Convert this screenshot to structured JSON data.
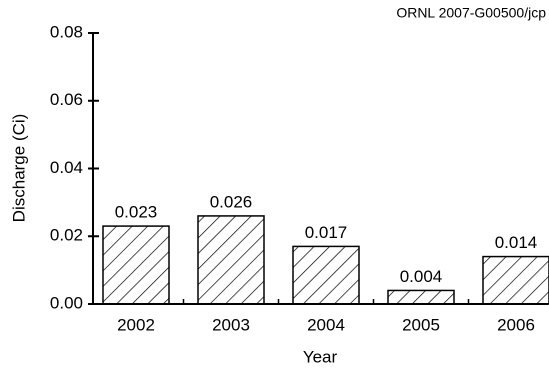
{
  "chart_data": {
    "type": "bar",
    "annotation": "ORNL 2007-G00500/jcp",
    "xlabel": "Year",
    "ylabel": "Discharge (Ci)",
    "categories": [
      "2002",
      "2003",
      "2004",
      "2005",
      "2006"
    ],
    "values": [
      0.023,
      0.026,
      0.017,
      0.004,
      0.014
    ],
    "color": "#000000",
    "ylim": [
      0,
      0.08
    ],
    "yticks": [
      {
        "value": 0,
        "label": "0.00"
      },
      0.02,
      0.04,
      0.06,
      0.08
    ]
  }
}
